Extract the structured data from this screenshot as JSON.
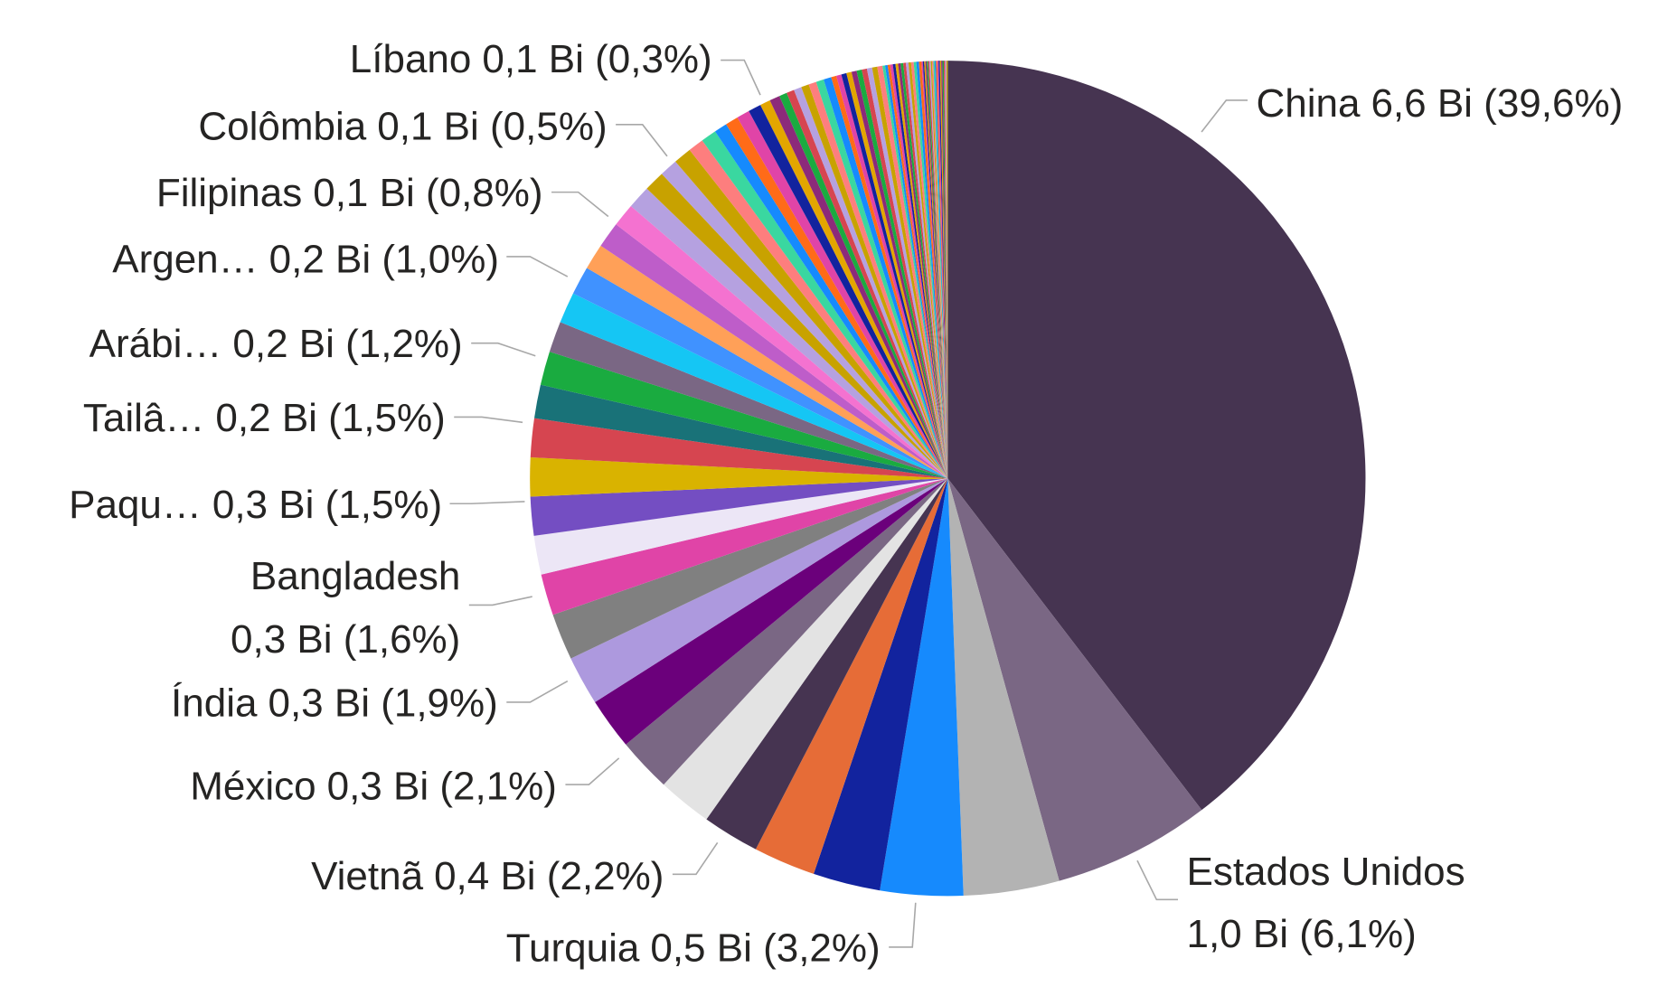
{
  "chart_data": {
    "type": "pie",
    "categories": [
      "China",
      "Estados Unidos",
      null,
      "Turquia",
      null,
      null,
      "Vietnã",
      null,
      "México",
      null,
      "Índia",
      null,
      "Bangladesh",
      null,
      "Paqu…",
      null,
      "Tailâ…",
      null,
      null,
      "Arábi…",
      null,
      null,
      "Argen…",
      null,
      null,
      null,
      "Filipinas",
      null,
      null,
      null,
      null,
      "Colômbia",
      null,
      null,
      null,
      null,
      null,
      "Líbano",
      null,
      null,
      null,
      null,
      null,
      null,
      null,
      null,
      null,
      null,
      null,
      null,
      null,
      null,
      null,
      null,
      null,
      null,
      null,
      null,
      null,
      null,
      null,
      null,
      null,
      null,
      null,
      null,
      null,
      null,
      null,
      null,
      null,
      null,
      null,
      null,
      null,
      null,
      null,
      null,
      null,
      null,
      null,
      null,
      null,
      null,
      null,
      null,
      null,
      null,
      null
    ],
    "values": [
      39.6,
      6.1,
      3.7,
      3.2,
      2.6,
      2.4,
      2.2,
      2.1,
      2.1,
      2.0,
      1.9,
      1.8,
      1.6,
      1.5,
      1.5,
      1.5,
      1.5,
      1.3,
      1.3,
      1.2,
      1.2,
      1.1,
      1.0,
      1.0,
      0.9,
      0.9,
      0.8,
      0.7,
      0.7,
      0.6,
      0.6,
      0.5,
      0.5,
      0.5,
      0.5,
      0.4,
      0.4,
      0.3,
      0.3,
      0.3,
      0.3,
      0.3,
      0.3,
      0.3,
      0.2,
      0.2,
      0.2,
      0.2,
      0.2,
      0.2,
      0.2,
      0.2,
      0.2,
      0.2,
      0.1,
      0.1,
      0.1,
      0.1,
      0.1,
      0.1,
      0.1,
      0.1,
      0.1,
      0.1,
      0.1,
      0.1,
      0.1,
      0.1,
      0.1,
      0.05,
      0.05,
      0.05,
      0.05,
      0.05,
      0.05,
      0.05,
      0.05,
      0.05,
      0.05,
      0.05,
      0.05,
      0.05,
      0.05,
      0.05,
      0.05,
      0.05,
      0.05,
      0.05,
      0.05
    ],
    "value_labels": [
      "6,6 Bi (39,6%)",
      "1,0 Bi (6,1%)",
      null,
      "0,5 Bi (3,2%)",
      null,
      null,
      "0,4 Bi (2,2%)",
      null,
      "0,3 Bi (2,1%)",
      null,
      "0,3 Bi (1,9%)",
      null,
      "0,3 Bi (1,6%)",
      null,
      "0,3 Bi (1,5%)",
      null,
      "0,2 Bi (1,5%)",
      null,
      null,
      "0,2 Bi (1,2%)",
      null,
      null,
      "0,2 Bi (1,0%)",
      null,
      null,
      null,
      "0,1 Bi (0,8%)",
      null,
      null,
      null,
      null,
      "0,1 Bi (0,5%)",
      null,
      null,
      null,
      null,
      null,
      "0,1 Bi (0,3%)",
      null,
      null,
      null,
      null,
      null,
      null,
      null,
      null,
      null,
      null,
      null,
      null,
      null,
      null,
      null,
      null,
      null,
      null,
      null,
      null,
      null,
      null,
      null,
      null,
      null,
      null,
      null,
      null,
      null,
      null,
      null,
      null,
      null,
      null,
      null,
      null,
      null,
      null,
      null,
      null,
      null,
      null,
      null,
      null,
      null,
      null,
      null,
      null,
      null,
      null,
      null
    ],
    "colors": [
      "#463451",
      "#7a6784",
      "#b3b3b3",
      "#168afd",
      "#12239e",
      "#e66c37",
      "#463451",
      "#e3e3e3",
      "#7a6784",
      "#6b007b",
      "#ad99de",
      "#808080",
      "#e044a7",
      "#ece6f6",
      "#744ec2",
      "#d9b300",
      "#d64550",
      "#197278",
      "#1aab40",
      "#7a6784",
      "#15c6f4",
      "#4092ff",
      "#ffa058",
      "#be5dc9",
      "#f472d0",
      "#b5a1e0",
      "#c8a200",
      "#b5a1e0",
      "#c8a200",
      "#fd7e7e",
      "#3ad7a0",
      "#168afd",
      "#ff6b18",
      "#e044a7",
      "#12239e",
      "#e3a600",
      "#8c2a7a",
      "#1aab40",
      "#d64550",
      "#b5a1e0",
      "#c8a200",
      "#fd7e7e",
      "#3ad7a0",
      "#168afd",
      "#ff6b18",
      "#e044a7",
      "#12239e",
      "#e3a600",
      "#8c2a7a",
      "#1aab40",
      "#d64550",
      "#b5a1e0",
      "#c8a200",
      "#fd7e7e",
      "#3ad7a0",
      "#168afd",
      "#ff6b18",
      "#e044a7",
      "#12239e",
      "#e3a600",
      "#8c2a7a",
      "#1aab40",
      "#d64550",
      "#b5a1e0",
      "#c8a200",
      "#fd7e7e",
      "#3ad7a0",
      "#168afd",
      "#ff6b18",
      "#e044a7",
      "#12239e",
      "#e3a600",
      "#8c2a7a",
      "#1aab40",
      "#d64550",
      "#b5a1e0",
      "#c8a200",
      "#fd7e7e",
      "#3ad7a0",
      "#168afd",
      "#ff6b18",
      "#e044a7",
      "#12239e",
      "#e3a600",
      "#8c2a7a",
      "#1aab40",
      "#d64550",
      "#b5a1e0",
      "#c8a200"
    ]
  }
}
